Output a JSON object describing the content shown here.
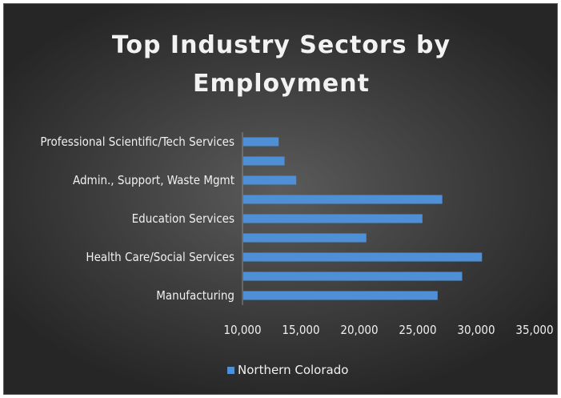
{
  "chart_data": {
    "type": "bar",
    "orientation": "horizontal",
    "title_lines": [
      "Top Industry Sectors by",
      "Employment"
    ],
    "categories": [
      "Manufacturing",
      "",
      "Health Care/Social Services",
      "",
      "Education Services",
      "",
      "Admin., Support, Waste Mgmt",
      "",
      "Professional Scientific/Tech Services"
    ],
    "series": [
      {
        "name": "Northern Colorado",
        "values": [
          26700,
          28800,
          30500,
          20600,
          25400,
          27100,
          14600,
          13600,
          13100
        ]
      }
    ],
    "xlim": [
      10000,
      35000
    ],
    "x_ticks": [
      "10,000",
      "15,000",
      "20,000",
      "25,000",
      "30,000",
      "35,000"
    ],
    "x_tick_values": [
      10000,
      15000,
      20000,
      25000,
      30000,
      35000
    ],
    "legend_position": "bottom",
    "bar_color": "#4e8fd6",
    "grid": false
  }
}
